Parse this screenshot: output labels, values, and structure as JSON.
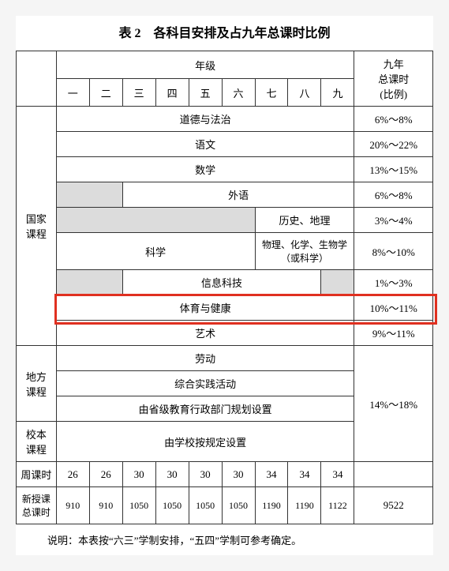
{
  "title": "表 2　各科目安排及占九年总课时比例",
  "header": {
    "grade_group": "年级",
    "ratio_header": "九年\n总课时\n(比例)",
    "grades": [
      "一",
      "二",
      "三",
      "四",
      "五",
      "六",
      "七",
      "八",
      "九"
    ]
  },
  "row_labels": {
    "national": "国家\n课程",
    "local": "地方\n课程",
    "school": "校本\n课程",
    "weekly": "周课时",
    "total": "新授课\n总课时"
  },
  "subjects": {
    "ethics": "道德与法治",
    "chinese": "语文",
    "math": "数学",
    "foreign": "外语",
    "history": "历史、地理",
    "science": "科学",
    "physics": "物理、化学、生物学（或科学）",
    "it": "信息科技",
    "pe": "体育与健康",
    "art": "艺术",
    "labor": "劳动",
    "practice": "综合实践活动",
    "local_plan": "由省级教育行政部门规划设置",
    "school_plan": "由学校按规定设置"
  },
  "ratios": {
    "ethics": "6%～8%",
    "chinese": "20%～22%",
    "math": "13%～15%",
    "foreign": "6%～8%",
    "history": "3%～4%",
    "science": "8%～10%",
    "it": "1%～3%",
    "pe": "10%～11%",
    "art": "9%～11%",
    "local": "14%～18%"
  },
  "weekly": [
    "26",
    "26",
    "30",
    "30",
    "30",
    "30",
    "34",
    "34",
    "34"
  ],
  "totals": [
    "910",
    "910",
    "1050",
    "1050",
    "1050",
    "1050",
    "1190",
    "1190",
    "1122"
  ],
  "total_sum": "9522",
  "note": "说明：本表按“六三”学制安排，“五四”学制可参考确定。",
  "style": {
    "highlight_color": "#e03020",
    "shaded_color": "#dcdcdc",
    "border_color": "#333333",
    "background": "#ffffff",
    "font_family": "SimSun",
    "title_fontsize": 16,
    "cell_fontsize": 13
  }
}
